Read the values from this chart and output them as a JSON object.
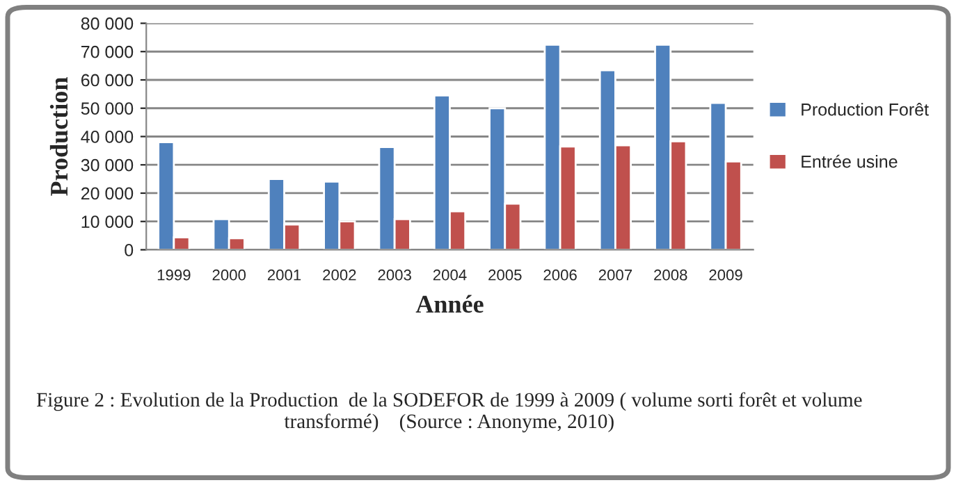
{
  "chart_data": {
    "type": "bar",
    "xlabel": "Année",
    "ylabel": "Production",
    "categories": [
      "1999",
      "2000",
      "2001",
      "2002",
      "2003",
      "2004",
      "2005",
      "2006",
      "2007",
      "2008",
      "2009"
    ],
    "series": [
      {
        "name": "Production Forêt",
        "color": "#4f81bd",
        "values": [
          38000,
          10800,
          25000,
          24100,
          36300,
          54500,
          50000,
          72400,
          63400,
          72400,
          51900
        ]
      },
      {
        "name": "Entrée usine",
        "color": "#c0504d",
        "values": [
          4400,
          4100,
          8900,
          10000,
          10800,
          13600,
          16300,
          36500,
          36900,
          38300,
          31200
        ]
      }
    ],
    "ylim": [
      0,
      80000
    ],
    "yticks": [
      {
        "value": 0,
        "label": "0"
      },
      {
        "value": 10000,
        "label": "10 000"
      },
      {
        "value": 20000,
        "label": "20 000"
      },
      {
        "value": 30000,
        "label": "30 000"
      },
      {
        "value": 40000,
        "label": "40 000"
      },
      {
        "value": 50000,
        "label": "50 000"
      },
      {
        "value": 60000,
        "label": "60 000"
      },
      {
        "value": 70000,
        "label": "70 000"
      },
      {
        "value": 80000,
        "label": "80 000"
      }
    ],
    "grid": "y",
    "legend": "right",
    "annotations": [
      "Figure 2 : Evolution de la Production  de la SODEFOR de 1999 à 2009 ( volume sorti forêt et volume transformé)    (Source : Anonyme, 2010)"
    ]
  }
}
